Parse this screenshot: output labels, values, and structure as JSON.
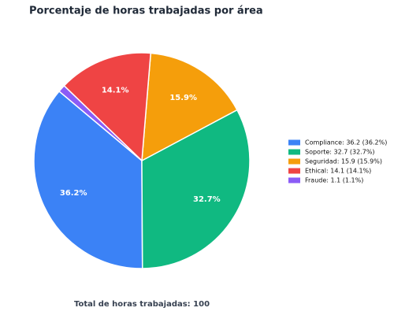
{
  "chart_data": {
    "type": "pie",
    "title": "Porcentaje de horas trabajadas por área",
    "categories": [
      "Compliance",
      "Soporte",
      "Seguridad",
      "Ethical",
      "Fraude"
    ],
    "values": [
      36.2,
      32.7,
      15.9,
      14.1,
      1.1
    ],
    "value_labels": [
      "36.2%",
      "32.7%",
      "15.9%",
      "14.1%",
      "1.1%"
    ],
    "colors": [
      "#3b82f6",
      "#10b981",
      "#f59e0b",
      "#ef4444",
      "#8b5cf6"
    ],
    "legend_labels": [
      "Compliance: 36.2 (36.2%)",
      "Soporte: 32.7 (32.7%)",
      "Seguridad: 15.9 (15.9%)",
      "Ethical: 14.1 (14.1%)",
      "Fraude: 1.1 (1.1%)"
    ],
    "legend_position": "right",
    "footer": "Total de horas trabajadas: 100"
  }
}
